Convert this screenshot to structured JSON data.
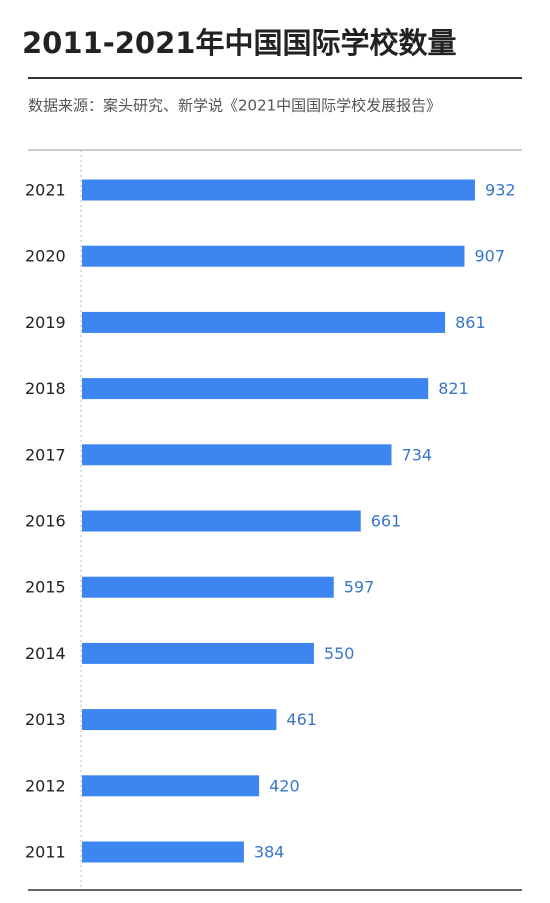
{
  "chart_data": {
    "type": "bar",
    "orientation": "horizontal",
    "title": "2011-2021年中国国际学校数量",
    "subtitle": "数据来源：案头研究、新学说《2021中国国际学校发展报告》",
    "categories": [
      "2021",
      "2020",
      "2019",
      "2018",
      "2017",
      "2016",
      "2015",
      "2014",
      "2013",
      "2012",
      "2011"
    ],
    "values": [
      932,
      907,
      861,
      821,
      734,
      661,
      597,
      550,
      461,
      420,
      384
    ],
    "color": "#3d86f2",
    "value_label_color": "#3a76c8"
  }
}
